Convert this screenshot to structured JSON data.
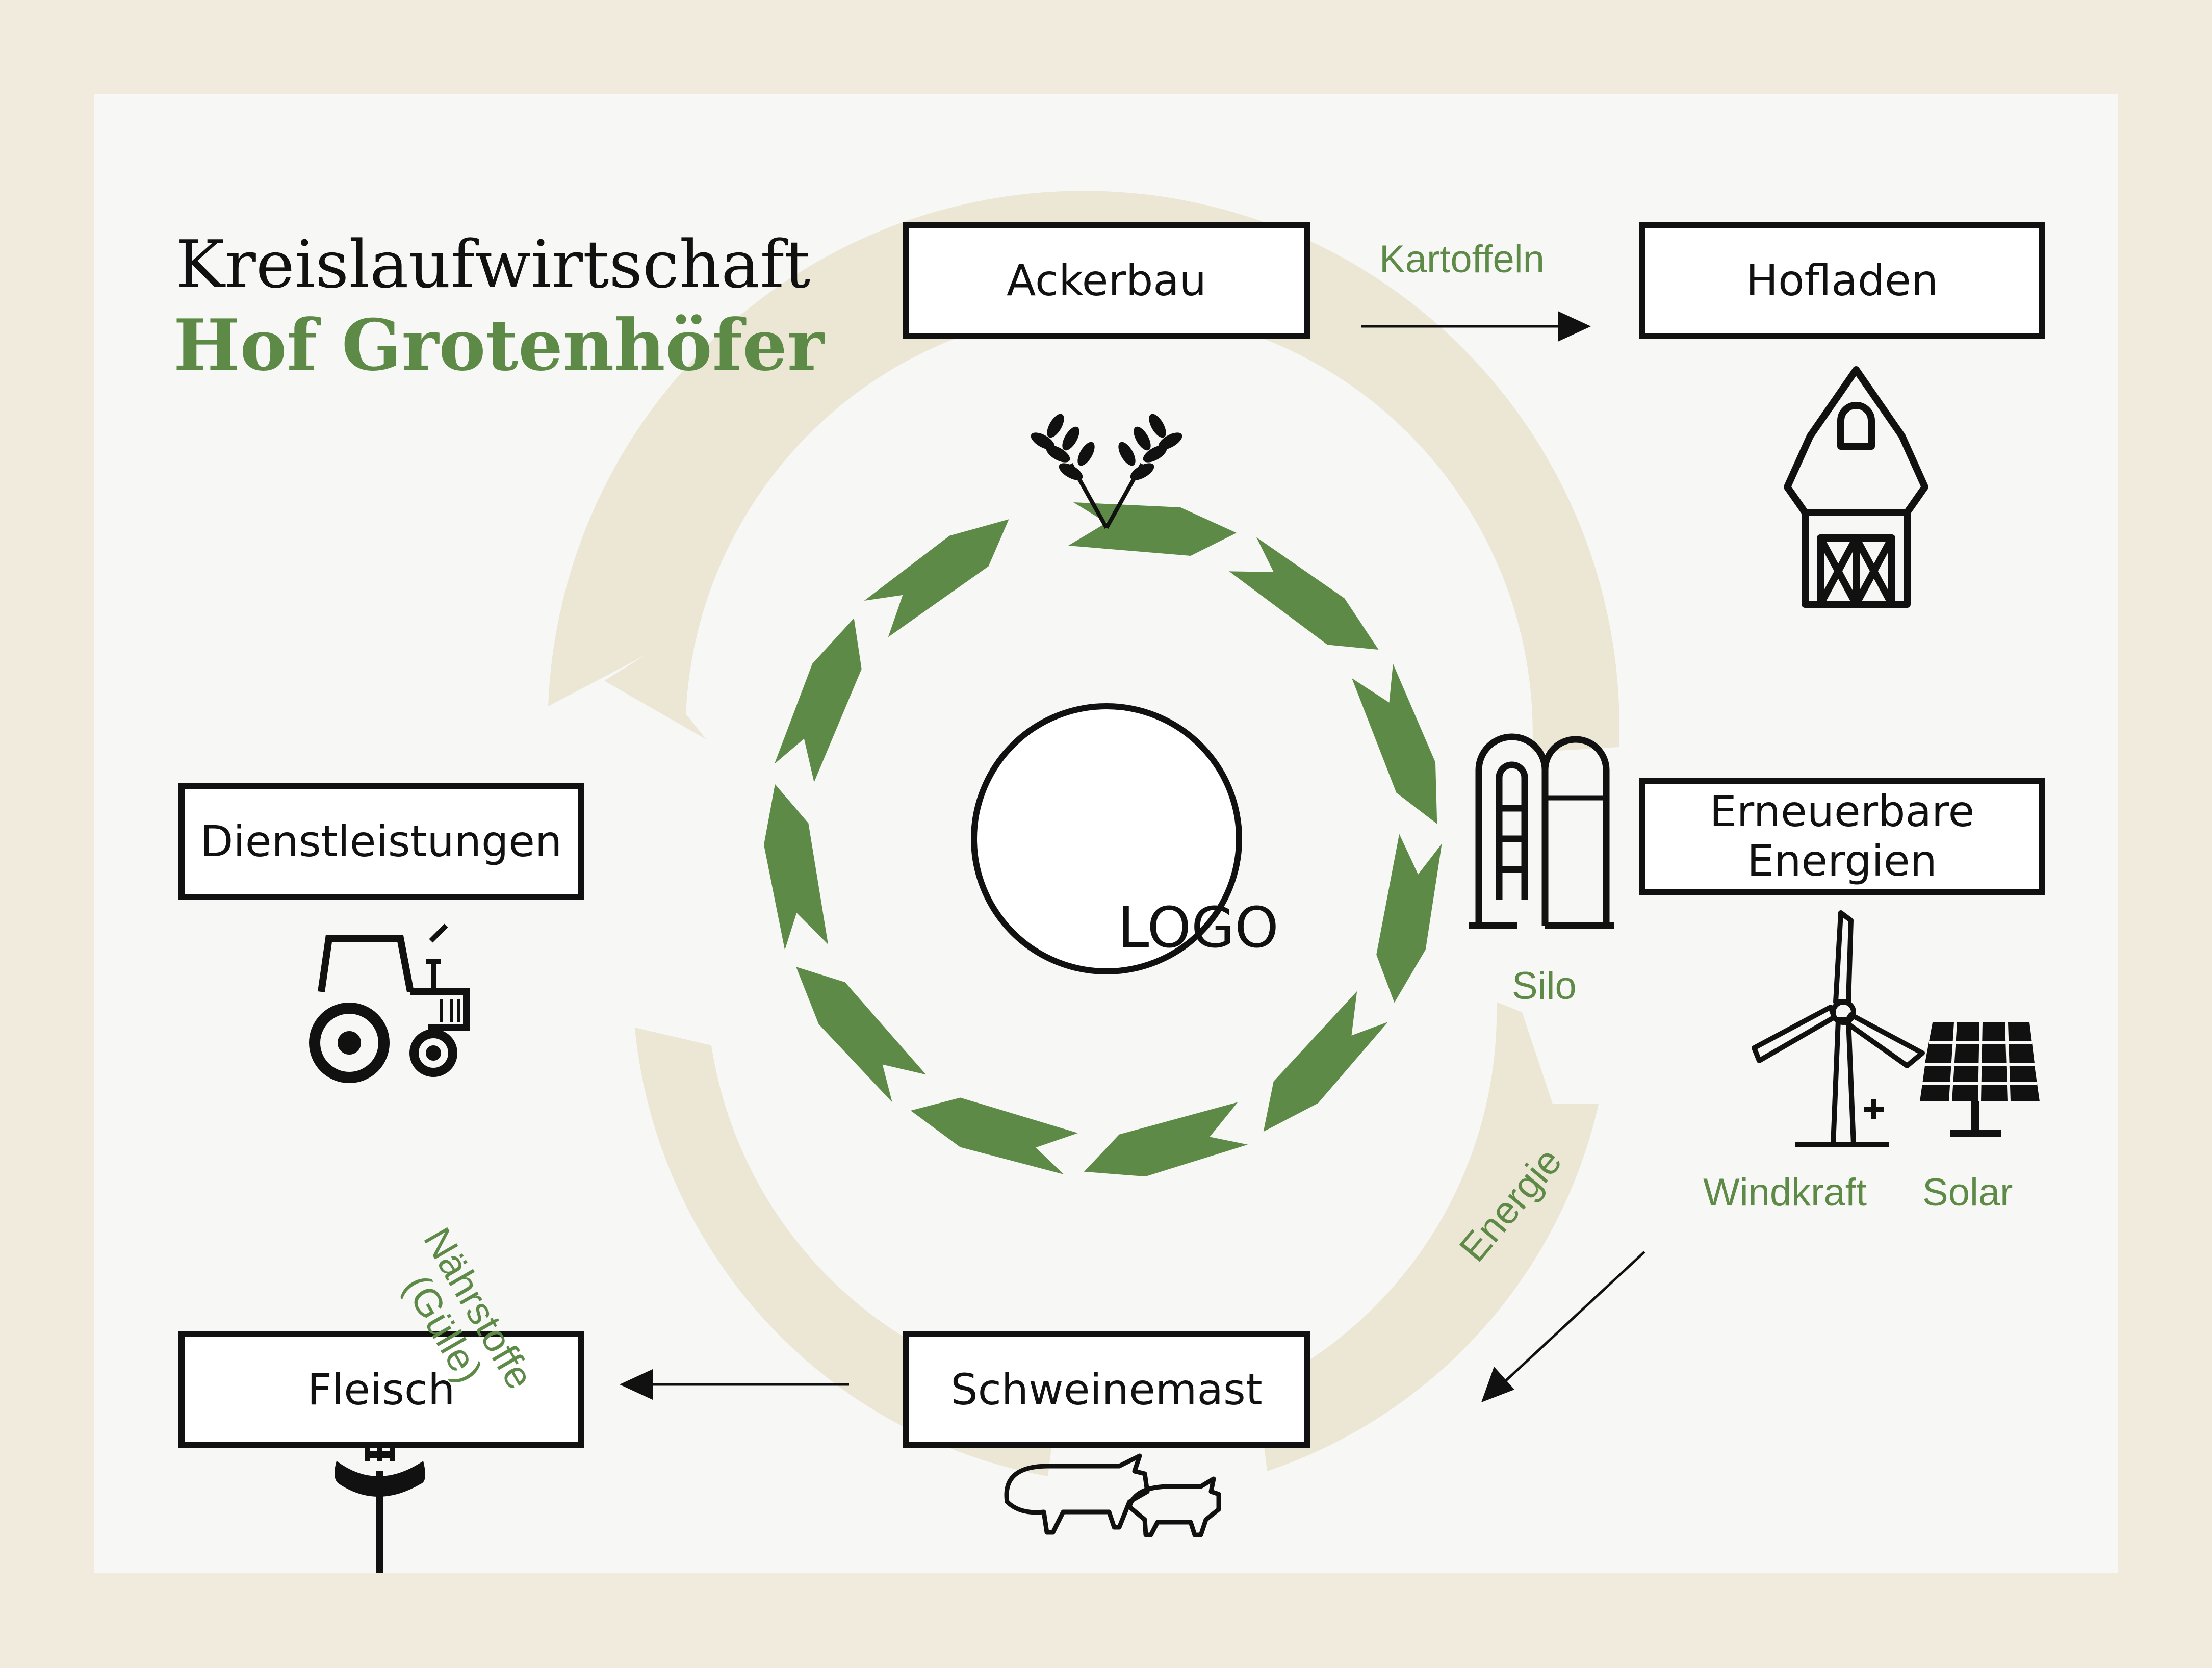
{
  "title": {
    "line1": "Kreislaufwirtschaft",
    "line2": "Hof Grotenhöfer"
  },
  "center": {
    "logo": "LOGO"
  },
  "nodes": {
    "ackerbau": "Ackerbau",
    "hofladen": "Hofladen",
    "dienstleistungen": "Dienstleistungen",
    "erneuerbare": "Erneuerbare Energien",
    "fleisch": "Fleisch",
    "schweinemast": "Schweinemast"
  },
  "labels": {
    "kartoffeln": "Kartoffeln",
    "silo": "Silo",
    "windkraft": "Windkraft",
    "solar": "Solar",
    "energie": "Energie",
    "naehrstoffe_line1": "Nährstoffe",
    "naehrstoffe_line2": "(Gülle)"
  },
  "icons": [
    "wheat-icon",
    "barn-icon",
    "tractor-icon",
    "silo-icon",
    "wind-turbine-icon",
    "solar-panel-icon",
    "sausage-fork-icon",
    "pigs-icon",
    "plus-icon"
  ],
  "colors": {
    "background": "#f0ebdc",
    "card": "#f7f7f5",
    "accent_green": "#5e8a47",
    "ring_beige": "#ece6d4",
    "outline": "#111111"
  }
}
